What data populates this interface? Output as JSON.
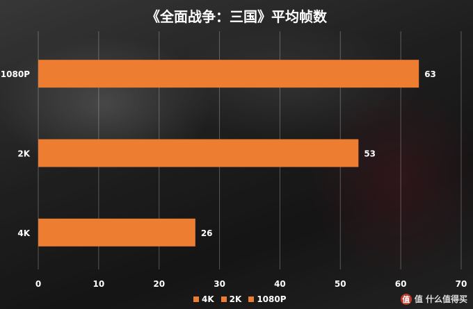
{
  "chart_data": {
    "type": "bar",
    "orientation": "horizontal",
    "title": "《全面战争：三国》平均帧数",
    "categories": [
      "1080P",
      "2K",
      "4K"
    ],
    "values": [
      63,
      53,
      26
    ],
    "series_color": "#ed7d31",
    "xlim": [
      0,
      70
    ],
    "xticks": [
      0,
      10,
      20,
      30,
      40,
      50,
      60,
      70
    ],
    "grid": true,
    "legend_placement": "bottom",
    "legend": [
      "4K",
      "2K",
      "1080P"
    ]
  },
  "watermark": {
    "text": "值 什么值得买",
    "logo": "值"
  }
}
